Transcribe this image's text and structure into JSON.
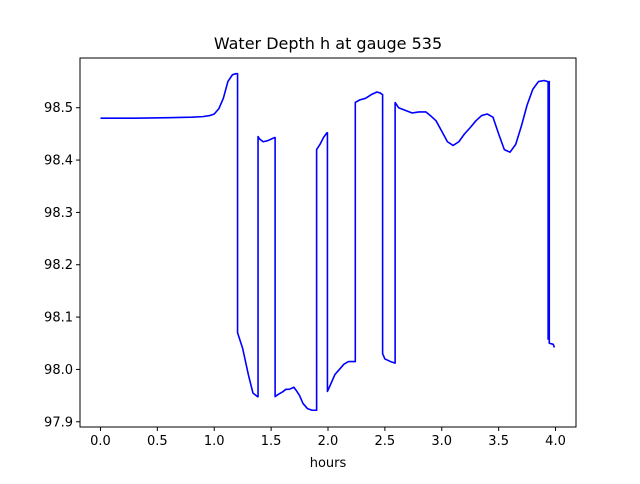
{
  "chart_data": {
    "type": "line",
    "title": "Water Depth h at gauge 535",
    "xlabel": "hours",
    "ylabel": "",
    "xlim": [
      -0.18,
      4.18
    ],
    "ylim": [
      97.89,
      98.595
    ],
    "xticks": [
      0.0,
      0.5,
      1.0,
      1.5,
      2.0,
      2.5,
      3.0,
      3.5,
      4.0
    ],
    "xtick_labels": [
      "0.0",
      "0.5",
      "1.0",
      "1.5",
      "2.0",
      "2.5",
      "3.0",
      "3.5",
      "4.0"
    ],
    "yticks": [
      97.9,
      98.0,
      98.1,
      98.2,
      98.3,
      98.4,
      98.5
    ],
    "ytick_labels": [
      "97.9",
      "98.0",
      "98.1",
      "98.2",
      "98.3",
      "98.4",
      "98.5"
    ],
    "grid": false,
    "series": [
      {
        "color": "#0000ff",
        "x": [
          0.0,
          0.3,
          0.6,
          0.8,
          0.9,
          0.96,
          1.0,
          1.04,
          1.08,
          1.12,
          1.16,
          1.19,
          1.205,
          1.205,
          1.22,
          1.25,
          1.3,
          1.34,
          1.38,
          1.385,
          1.385,
          1.4,
          1.43,
          1.47,
          1.5,
          1.53,
          1.535,
          1.535,
          1.56,
          1.6,
          1.63,
          1.66,
          1.7,
          1.72,
          1.75,
          1.78,
          1.82,
          1.86,
          1.9,
          1.9,
          1.93,
          1.96,
          1.99,
          1.995,
          1.995,
          2.02,
          2.06,
          2.1,
          2.14,
          2.18,
          2.22,
          2.24,
          2.24,
          2.28,
          2.33,
          2.38,
          2.43,
          2.46,
          2.48,
          2.48,
          2.5,
          2.55,
          2.59,
          2.59,
          2.62,
          2.68,
          2.74,
          2.8,
          2.86,
          2.9,
          2.95,
          3.0,
          3.05,
          3.1,
          3.15,
          3.2,
          3.25,
          3.3,
          3.35,
          3.4,
          3.45,
          3.5,
          3.55,
          3.6,
          3.65,
          3.7,
          3.75,
          3.8,
          3.85,
          3.9,
          3.93,
          3.935,
          3.935,
          3.94,
          3.945,
          3.945,
          3.98,
          3.99
        ],
        "values": [
          98.48,
          98.48,
          98.481,
          98.482,
          98.483,
          98.485,
          98.488,
          98.498,
          98.518,
          98.55,
          98.563,
          98.565,
          98.565,
          98.07,
          98.06,
          98.04,
          97.99,
          97.955,
          97.948,
          97.948,
          98.445,
          98.44,
          98.435,
          98.437,
          98.44,
          98.443,
          98.443,
          97.948,
          97.952,
          97.957,
          97.962,
          97.962,
          97.966,
          97.96,
          97.95,
          97.935,
          97.925,
          97.922,
          97.922,
          98.42,
          98.43,
          98.443,
          98.452,
          98.452,
          97.958,
          97.97,
          97.99,
          98.0,
          98.01,
          98.015,
          98.015,
          98.015,
          98.51,
          98.515,
          98.518,
          98.525,
          98.53,
          98.528,
          98.525,
          98.03,
          98.02,
          98.015,
          98.012,
          98.51,
          98.5,
          98.495,
          98.49,
          98.492,
          98.492,
          98.485,
          98.475,
          98.455,
          98.435,
          98.428,
          98.435,
          98.45,
          98.462,
          98.475,
          98.485,
          98.488,
          98.482,
          98.45,
          98.42,
          98.415,
          98.43,
          98.465,
          98.505,
          98.535,
          98.55,
          98.552,
          98.55,
          98.55,
          98.058,
          98.058,
          98.55,
          98.05,
          98.048,
          98.042
        ]
      }
    ]
  }
}
